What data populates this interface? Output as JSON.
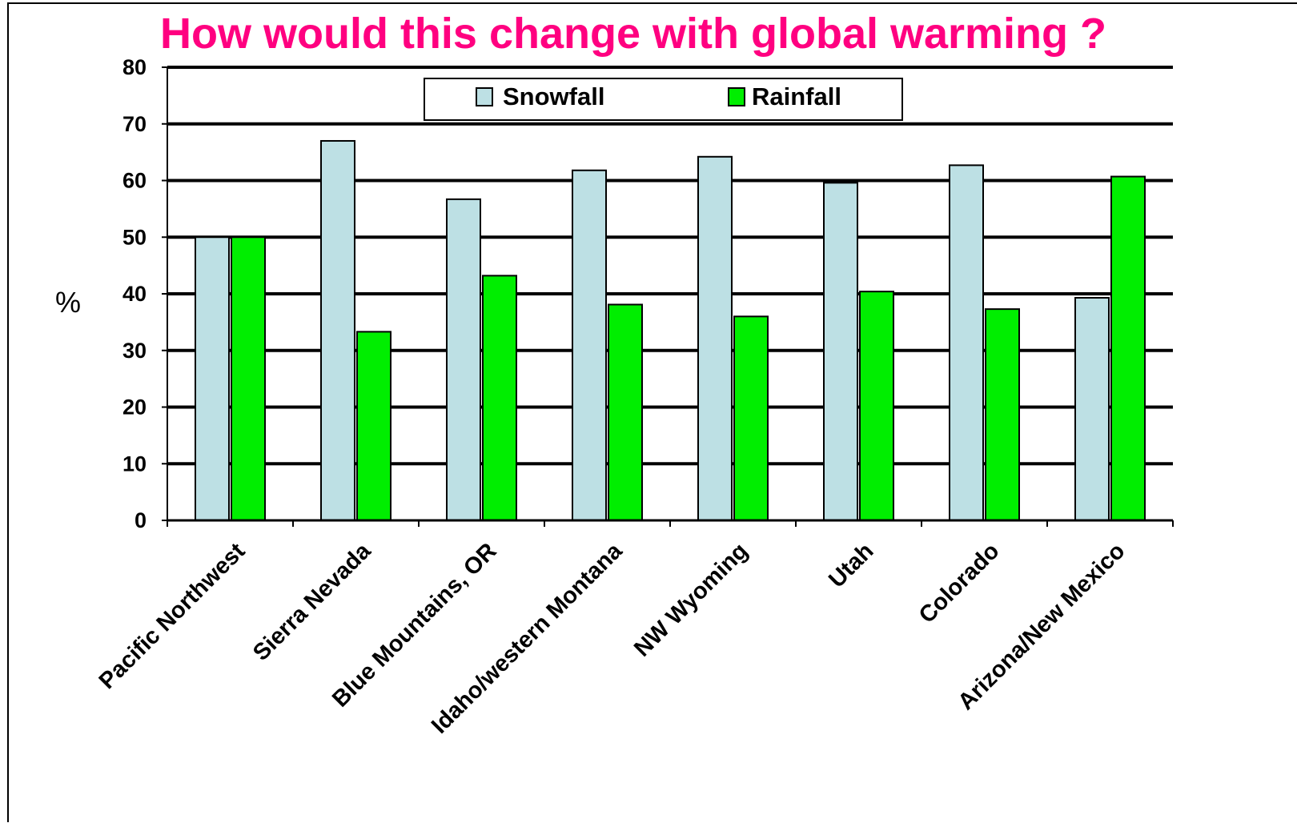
{
  "colors": {
    "title": "#ff0080",
    "snowfall": "#bde0e4",
    "rainfall": "#00ee00",
    "bar_outline": "#000000",
    "grid": "#000000"
  },
  "chart_data": {
    "type": "bar",
    "title": "How would this change with global warming ?",
    "xlabel": "",
    "ylabel": "%",
    "ylim": [
      0,
      80
    ],
    "yticks": [
      0,
      10,
      20,
      30,
      40,
      50,
      60,
      70,
      80
    ],
    "grid": true,
    "legend_position": "top-center",
    "categories": [
      "Pacific Northwest",
      "Sierra Nevada",
      "Blue Mountains, OR",
      "Idaho/western Montana",
      "NW Wyoming",
      "Utah",
      "Colorado",
      "Arizona/New Mexico"
    ],
    "series": [
      {
        "name": "Snowfall",
        "values": [
          50,
          67,
          56.7,
          61.8,
          64.2,
          59.6,
          62.7,
          39.3
        ]
      },
      {
        "name": "Rainfall",
        "values": [
          50,
          33.3,
          43.2,
          38.1,
          36.0,
          40.4,
          37.3,
          60.7
        ]
      }
    ]
  }
}
